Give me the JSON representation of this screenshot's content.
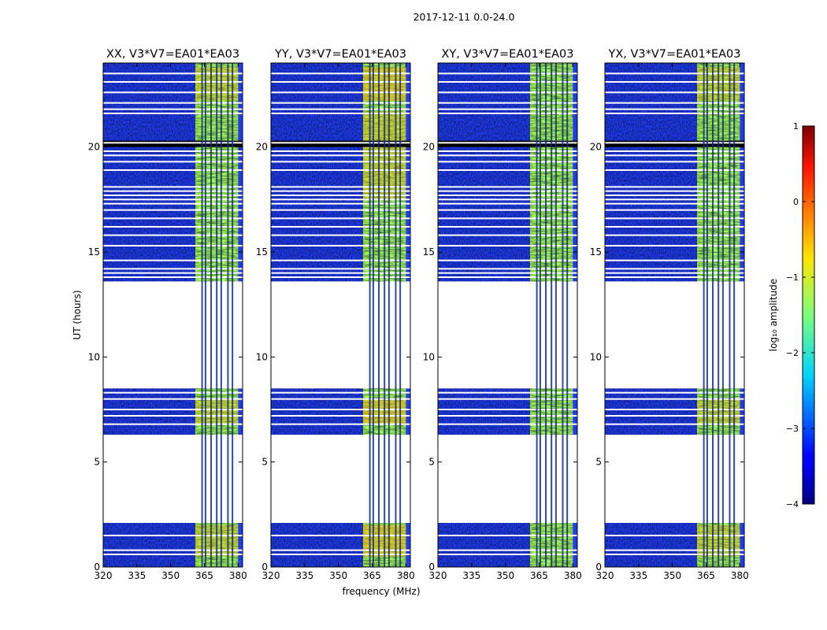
{
  "chart_data": {
    "type": "heatmap",
    "suptitle": "2017-12-11 0.0-24.0",
    "xlabel": "frequency (MHz)",
    "ylabel": "UT (hours)",
    "xlim": [
      320,
      382
    ],
    "ylim": [
      0,
      24
    ],
    "xticks": [
      320,
      335,
      350,
      365,
      380
    ],
    "yticks": [
      0,
      5,
      10,
      15,
      20
    ],
    "colormap": "jet",
    "panels": [
      {
        "title": "XX, V3*V7=EA01*EA03"
      },
      {
        "title": "YY, V3*V7=EA01*EA03"
      },
      {
        "title": "XY, V3*V7=EA01*EA03"
      },
      {
        "title": "YX, V3*V7=EA01*EA03"
      }
    ],
    "data_time_ranges_hours": [
      [
        0.0,
        2.1
      ],
      [
        6.3,
        8.5
      ],
      [
        13.6,
        24.0
      ]
    ],
    "flagged_time_lines_hours": [
      0.6,
      0.8,
      1.5,
      6.8,
      7.2,
      7.5,
      8.0,
      8.3,
      13.8,
      14.0,
      14.2,
      14.6,
      15.3,
      15.8,
      16.2,
      16.6,
      17.0,
      17.3,
      17.5,
      17.7,
      17.9,
      18.1,
      18.9,
      19.3,
      19.6,
      19.8,
      20.2,
      21.6,
      21.8,
      22.1,
      22.6,
      23.1,
      23.5
    ],
    "dark_rows_hours": [
      [
        20.0,
        20.3
      ]
    ],
    "flagged_channel_lines_mhz": [
      364.0,
      365.5,
      368.0,
      370.5,
      372.5,
      375.5,
      377.5
    ],
    "bands": [
      {
        "name": "quiet band",
        "freq_mhz": [
          320,
          361
        ],
        "log10_amplitude_approx": -3.2
      },
      {
        "name": "loud band",
        "freq_mhz": [
          361,
          380
        ],
        "log10_amplitude_approx": -1.0
      }
    ],
    "colorbar": {
      "label": "log₁₀ amplitude",
      "range": [
        -4,
        1
      ],
      "ticks": [
        "1",
        "0",
        "−1",
        "−2",
        "−3",
        "−4"
      ],
      "tick_values": [
        1,
        0,
        -1,
        -2,
        -3,
        -4
      ],
      "stops": [
        {
          "offset": 0.0,
          "color": "#00007f"
        },
        {
          "offset": 0.11,
          "color": "#0000ff"
        },
        {
          "offset": 0.125,
          "color": "#0000ff"
        },
        {
          "offset": 0.34,
          "color": "#00d4ff"
        },
        {
          "offset": 0.5,
          "color": "#7dff7a"
        },
        {
          "offset": 0.65,
          "color": "#ffe600"
        },
        {
          "offset": 0.89,
          "color": "#ff1400"
        },
        {
          "offset": 1.0,
          "color": "#7f0000"
        }
      ]
    }
  },
  "colors": {
    "quiet": "#1f3cf2",
    "quiet_dark": "#0c1ac8",
    "quiet_light": "#2e6bff",
    "loud": "#a6ff52",
    "loud_hot": "#ffb000",
    "loud_warm": "#ffe83a",
    "flag": "#ffffff",
    "dark_row": "#000000",
    "channel_line": "#0b2a9a"
  }
}
